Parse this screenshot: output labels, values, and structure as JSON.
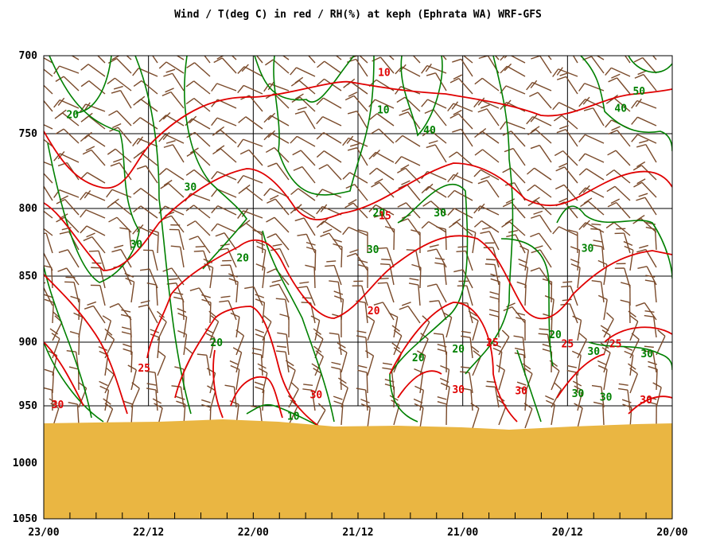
{
  "chart_data": {
    "type": "line",
    "title": "Wind / T(deg C) in red / RH(%) at keph (Ephrata WA)  WRF-GFS",
    "x_ticks": [
      "23/00",
      "22/12",
      "22/00",
      "21/12",
      "21/00",
      "20/12",
      "20/00"
    ],
    "y_ticks": [
      "700",
      "750",
      "800",
      "850",
      "900",
      "950",
      "1000",
      "1050"
    ],
    "y_values": [
      700,
      750,
      800,
      850,
      900,
      950,
      1000,
      1050
    ],
    "ylim": [
      700,
      1050
    ],
    "y_inverted": true,
    "colors": {
      "temperature": "#e00000",
      "rh": "#008000",
      "wind": "#7a4a2a",
      "terrain": "#eab642"
    },
    "temperature_labels": [
      {
        "text": "10",
        "time": 33.0,
        "p": 713
      },
      {
        "text": "15",
        "time": 32.9,
        "p": 808
      },
      {
        "text": "20",
        "time": 34.2,
        "p": 879
      },
      {
        "text": "25",
        "time": 60.5,
        "p": 923
      },
      {
        "text": "30",
        "time": 40.8,
        "p": 944
      },
      {
        "text": "25",
        "time": 20.6,
        "p": 903
      },
      {
        "text": "30",
        "time": 17.3,
        "p": 941
      },
      {
        "text": "25",
        "time": 12.0,
        "p": 904
      },
      {
        "text": "30",
        "time": 24.5,
        "p": 940
      },
      {
        "text": "25",
        "time": 6.5,
        "p": 904
      },
      {
        "text": "30",
        "time": 3.0,
        "p": 948
      },
      {
        "text": "30",
        "time": 70.4,
        "p": 952
      }
    ],
    "rh_labels": [
      {
        "text": "20",
        "time": 68.7,
        "p": 740
      },
      {
        "text": "10",
        "time": 33.1,
        "p": 737
      },
      {
        "text": "40",
        "time": 27.8,
        "p": 750
      },
      {
        "text": "40",
        "time": 5.9,
        "p": 736
      },
      {
        "text": "50",
        "time": 3.8,
        "p": 725
      },
      {
        "text": "30",
        "time": 55.2,
        "p": 788
      },
      {
        "text": "20",
        "time": 33.6,
        "p": 806
      },
      {
        "text": "30",
        "time": 26.6,
        "p": 806
      },
      {
        "text": "30",
        "time": 61.4,
        "p": 829
      },
      {
        "text": "20",
        "time": 49.2,
        "p": 839
      },
      {
        "text": "30",
        "time": 34.3,
        "p": 833
      },
      {
        "text": "30",
        "time": 9.7,
        "p": 832
      },
      {
        "text": "20",
        "time": 52.2,
        "p": 903
      },
      {
        "text": "20",
        "time": 29.1,
        "p": 915
      },
      {
        "text": "20",
        "time": 24.5,
        "p": 908
      },
      {
        "text": "20",
        "time": 13.4,
        "p": 897
      },
      {
        "text": "30",
        "time": 9.0,
        "p": 910
      },
      {
        "text": "30",
        "time": 2.9,
        "p": 912
      },
      {
        "text": "30",
        "time": 10.8,
        "p": 943
      },
      {
        "text": "30",
        "time": 7.6,
        "p": 946
      },
      {
        "text": "10",
        "time": 43.4,
        "p": 962
      }
    ]
  }
}
